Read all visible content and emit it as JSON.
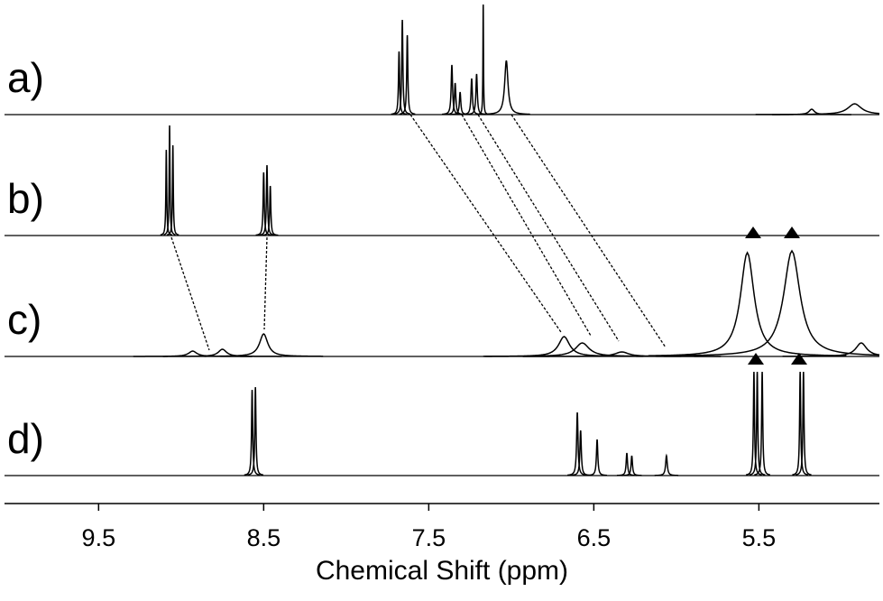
{
  "chart_data": {
    "type": "spectrum",
    "xlabel": "Chemical Shift (ppm)",
    "xlim": [
      10.07,
      4.77
    ],
    "xticks": [
      9.5,
      8.5,
      7.5,
      6.5,
      5.5
    ],
    "ylim": [
      0,
      130
    ],
    "color": "#000000",
    "series": [
      {
        "name": "a)",
        "x": [
          7.68,
          7.66,
          7.63,
          7.36,
          7.34,
          7.31,
          7.24,
          7.21,
          7.17,
          7.03,
          5.18,
          4.92
        ],
        "values": [
          70,
          105,
          88,
          55,
          35,
          25,
          40,
          45,
          122,
          60,
          6,
          12
        ],
        "widths": [
          0.004,
          0.004,
          0.004,
          0.005,
          0.005,
          0.005,
          0.005,
          0.005,
          0.002,
          0.012,
          0.02,
          0.05
        ]
      },
      {
        "name": "b)",
        "x": [
          9.09,
          9.07,
          9.05,
          8.5,
          8.48,
          8.46
        ],
        "values": [
          95,
          122,
          100,
          70,
          78,
          55
        ],
        "widths": [
          0.003,
          0.003,
          0.003,
          0.004,
          0.004,
          0.004
        ]
      },
      {
        "name": "c)",
        "x": [
          8.93,
          8.75,
          8.5,
          6.68,
          6.57,
          6.33,
          5.57,
          5.3,
          4.88
        ],
        "values": [
          6,
          8,
          25,
          22,
          15,
          5,
          115,
          117,
          15
        ],
        "widths": [
          0.03,
          0.03,
          0.03,
          0.04,
          0.05,
          0.05,
          0.05,
          0.06,
          0.04
        ]
      },
      {
        "name": "d)",
        "x": [
          8.57,
          8.55,
          6.6,
          6.58,
          6.48,
          6.3,
          6.27,
          6.06,
          5.53,
          5.51,
          5.48,
          5.25,
          5.23
        ],
        "values": [
          95,
          98,
          70,
          50,
          40,
          25,
          22,
          22,
          115,
          115,
          115,
          115,
          115
        ],
        "widths": [
          0.004,
          0.004,
          0.005,
          0.005,
          0.005,
          0.005,
          0.005,
          0.006,
          0.004,
          0.004,
          0.004,
          0.004,
          0.004
        ]
      }
    ]
  }
}
